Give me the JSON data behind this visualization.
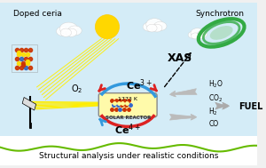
{
  "bg_color": "#f0f0f0",
  "title_top_left": "Doped ceria",
  "title_top_right": "Synchrotron",
  "label_xas": "XAS",
  "label_ce3": "Ce$^{3+}$",
  "label_ce4": "Ce$^{4+}$",
  "label_temp": "1773 K",
  "label_reactor": "SOLAR REACTOR",
  "label_o2": "O$_2$",
  "label_h2o_co2": "H$_2$O\nCO$_2$",
  "label_h2_co": "H$_2$\nCO",
  "label_fuel": "FUEL",
  "label_xas_arrow": "XAS",
  "bottom_text": "Structural analysis under realistic conditions",
  "sun_color": "#FFD700",
  "sky_color": "#d4ecf7",
  "grass_color": "#66bb00",
  "red_arrow_color": "#DD2222",
  "blue_arrow_color": "#3399DD",
  "gray_arrow_color": "#aaaaaa",
  "green_ring_color": "#33AA44",
  "reactor_bg": "#FFFAAA",
  "reactor_outline": "#aaaaaa"
}
